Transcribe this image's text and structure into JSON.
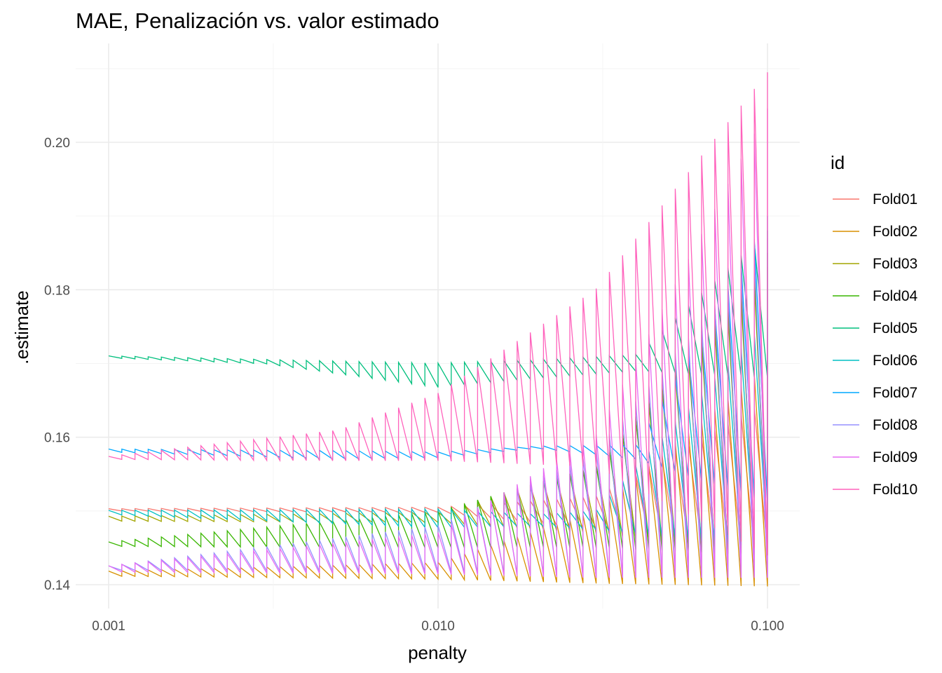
{
  "chart_data": {
    "type": "line",
    "title": "MAE, Penalización vs. valor estimado",
    "xlabel": "penalty",
    "ylabel": ".estimate",
    "x_scale": "log10",
    "xlim": [
      0.001,
      0.1
    ],
    "ylim": [
      0.1375,
      0.2105
    ],
    "x_ticks": [
      {
        "value": 0.001,
        "label": "0.001"
      },
      {
        "value": 0.01,
        "label": "0.010"
      },
      {
        "value": 0.1,
        "label": "0.100"
      }
    ],
    "y_ticks": [
      {
        "value": 0.14,
        "label": "0.14"
      },
      {
        "value": 0.16,
        "label": "0.16"
      },
      {
        "value": 0.18,
        "label": "0.18"
      },
      {
        "value": 0.2,
        "label": "0.20"
      }
    ],
    "grid": true,
    "legend": {
      "title": "id",
      "position": "right"
    },
    "pattern": "sawtooth",
    "n_cycles": 50,
    "series": [
      {
        "name": "Fold01",
        "color": "#F8766D",
        "low": [
          [
            0.001,
            0.15
          ],
          [
            0.01,
            0.1498
          ],
          [
            0.03,
            0.1475
          ],
          [
            0.1,
            0.1445
          ]
        ],
        "high": [
          [
            0.001,
            0.1503
          ],
          [
            0.01,
            0.1505
          ],
          [
            0.03,
            0.152
          ],
          [
            0.1,
            0.165
          ]
        ]
      },
      {
        "name": "Fold02",
        "color": "#D89000",
        "low": [
          [
            0.001,
            0.1412
          ],
          [
            0.01,
            0.1408
          ],
          [
            0.03,
            0.1402
          ],
          [
            0.1,
            0.1398
          ]
        ],
        "high": [
          [
            0.001,
            0.1418
          ],
          [
            0.01,
            0.143
          ],
          [
            0.03,
            0.15
          ],
          [
            0.1,
            0.17
          ]
        ]
      },
      {
        "name": "Fold03",
        "color": "#A3A500",
        "low": [
          [
            0.001,
            0.1487
          ],
          [
            0.01,
            0.1485
          ],
          [
            0.03,
            0.147
          ],
          [
            0.1,
            0.144
          ]
        ],
        "high": [
          [
            0.001,
            0.1492
          ],
          [
            0.01,
            0.1498
          ],
          [
            0.03,
            0.156
          ],
          [
            0.1,
            0.183
          ]
        ]
      },
      {
        "name": "Fold04",
        "color": "#39B600",
        "low": [
          [
            0.001,
            0.1452
          ],
          [
            0.01,
            0.145
          ],
          [
            0.03,
            0.145
          ],
          [
            0.1,
            0.144
          ]
        ],
        "high": [
          [
            0.001,
            0.1458
          ],
          [
            0.01,
            0.15
          ],
          [
            0.03,
            0.156
          ],
          [
            0.1,
            0.185
          ]
        ]
      },
      {
        "name": "Fold05",
        "color": "#00BF7D",
        "low": [
          [
            0.001,
            0.1708
          ],
          [
            0.003,
            0.17
          ],
          [
            0.01,
            0.1668
          ],
          [
            0.02,
            0.168
          ],
          [
            0.04,
            0.169
          ],
          [
            0.1,
            0.168
          ]
        ],
        "high": [
          [
            0.001,
            0.171
          ],
          [
            0.003,
            0.1705
          ],
          [
            0.01,
            0.17
          ],
          [
            0.02,
            0.1705
          ],
          [
            0.04,
            0.1712
          ],
          [
            0.1,
            0.188
          ]
        ]
      },
      {
        "name": "Fold06",
        "color": "#00BFC4",
        "low": [
          [
            0.001,
            0.1496
          ],
          [
            0.01,
            0.1478
          ],
          [
            0.02,
            0.148
          ],
          [
            0.03,
            0.1475
          ],
          [
            0.1,
            0.145
          ]
        ],
        "high": [
          [
            0.001,
            0.15
          ],
          [
            0.01,
            0.1502
          ],
          [
            0.02,
            0.1495
          ],
          [
            0.03,
            0.15
          ],
          [
            0.1,
            0.176
          ]
        ]
      },
      {
        "name": "Fold07",
        "color": "#00A9FF",
        "low": [
          [
            0.001,
            0.158
          ],
          [
            0.005,
            0.157
          ],
          [
            0.01,
            0.1572
          ],
          [
            0.02,
            0.1585
          ],
          [
            0.04,
            0.157
          ],
          [
            0.1,
            0.151
          ]
        ],
        "high": [
          [
            0.001,
            0.1584
          ],
          [
            0.005,
            0.1582
          ],
          [
            0.01,
            0.158
          ],
          [
            0.02,
            0.1588
          ],
          [
            0.04,
            0.159
          ],
          [
            0.1,
            0.19
          ]
        ]
      },
      {
        "name": "Fold08",
        "color": "#9590FF",
        "low": [
          [
            0.001,
            0.142
          ],
          [
            0.01,
            0.1418
          ],
          [
            0.03,
            0.141
          ],
          [
            0.1,
            0.141
          ]
        ],
        "high": [
          [
            0.001,
            0.1425
          ],
          [
            0.01,
            0.148
          ],
          [
            0.03,
            0.158
          ],
          [
            0.1,
            0.187
          ]
        ]
      },
      {
        "name": "Fold09",
        "color": "#E76BF3",
        "low": [
          [
            0.001,
            0.1418
          ],
          [
            0.01,
            0.1415
          ],
          [
            0.03,
            0.141
          ],
          [
            0.1,
            0.141
          ]
        ],
        "high": [
          [
            0.001,
            0.1425
          ],
          [
            0.01,
            0.147
          ],
          [
            0.03,
            0.16
          ],
          [
            0.1,
            0.2045
          ]
        ]
      },
      {
        "name": "Fold10",
        "color": "#FF62BC",
        "low": [
          [
            0.001,
            0.157
          ],
          [
            0.005,
            0.1568
          ],
          [
            0.01,
            0.1568
          ],
          [
            0.03,
            0.156
          ],
          [
            0.1,
            0.144
          ]
        ],
        "high": [
          [
            0.001,
            0.1574
          ],
          [
            0.005,
            0.161
          ],
          [
            0.01,
            0.166
          ],
          [
            0.03,
            0.18
          ],
          [
            0.1,
            0.2095
          ]
        ]
      }
    ]
  }
}
